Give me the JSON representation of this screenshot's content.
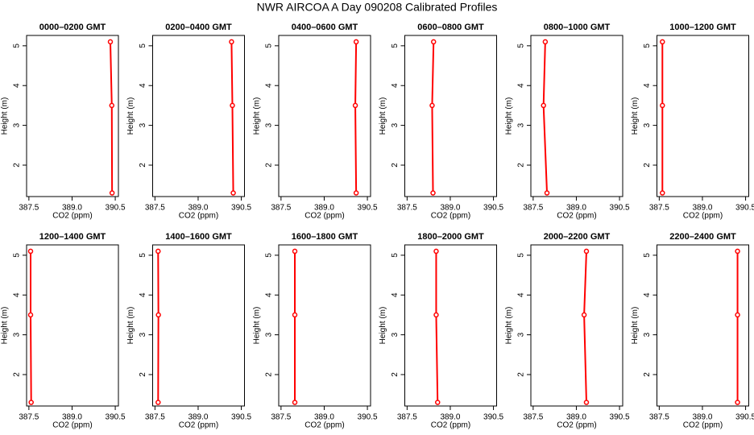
{
  "title": "NWR AIRCOA A  Day 090208  Calibrated Profiles",
  "chart_data": [
    {
      "type": "line",
      "title": "0000–0200 GMT",
      "xlabel": "CO2 (ppm)",
      "ylabel": "Height (m)",
      "color": "#ff0000",
      "x": [
        390.39,
        390.38,
        390.33
      ],
      "y": [
        1.3,
        3.5,
        5.1
      ],
      "xlim": [
        387.42,
        390.61
      ],
      "ylim": [
        1.21,
        5.26
      ],
      "xticks": [
        387.5,
        {
          "value": 389,
          "label": "389.0"
        },
        390.5
      ],
      "yticks": [
        2,
        3,
        4,
        5
      ]
    },
    {
      "type": "line",
      "title": "0200–0400 GMT",
      "xlabel": "CO2 (ppm)",
      "ylabel": "Height (m)",
      "color": "#ff0000",
      "x": [
        390.22,
        390.19,
        390.16
      ],
      "y": [
        1.3,
        3.5,
        5.1
      ],
      "xlim": [
        387.42,
        390.61
      ],
      "ylim": [
        1.21,
        5.26
      ],
      "xticks": [
        387.5,
        {
          "value": 389,
          "label": "389.0"
        },
        390.5
      ],
      "yticks": [
        2,
        3,
        4,
        5
      ]
    },
    {
      "type": "line",
      "title": "0400–0600 GMT",
      "xlabel": "CO2 (ppm)",
      "ylabel": "Height (m)",
      "color": "#ff0000",
      "x": [
        390.11,
        390.08,
        390.11
      ],
      "y": [
        1.3,
        3.5,
        5.1
      ],
      "xlim": [
        387.42,
        390.61
      ],
      "ylim": [
        1.21,
        5.26
      ],
      "xticks": [
        387.5,
        {
          "value": 389,
          "label": "389.0"
        },
        390.5
      ],
      "yticks": [
        2,
        3,
        4,
        5
      ]
    },
    {
      "type": "line",
      "title": "0600–0800 GMT",
      "xlabel": "CO2 (ppm)",
      "ylabel": "Height (m)",
      "color": "#ff0000",
      "x": [
        388.4,
        388.37,
        388.42
      ],
      "y": [
        1.3,
        3.5,
        5.1
      ],
      "xlim": [
        387.42,
        390.61
      ],
      "ylim": [
        1.21,
        5.26
      ],
      "xticks": [
        387.5,
        {
          "value": 389,
          "label": "389.0"
        },
        390.5
      ],
      "yticks": [
        2,
        3,
        4,
        5
      ]
    },
    {
      "type": "line",
      "title": "0800–1000 GMT",
      "xlabel": "CO2 (ppm)",
      "ylabel": "Height (m)",
      "color": "#ff0000",
      "x": [
        387.98,
        387.86,
        387.92
      ],
      "y": [
        1.3,
        3.5,
        5.1
      ],
      "xlim": [
        387.42,
        390.61
      ],
      "ylim": [
        1.21,
        5.26
      ],
      "xticks": [
        387.5,
        {
          "value": 389,
          "label": "389.0"
        },
        390.5
      ],
      "yticks": [
        2,
        3,
        4,
        5
      ]
    },
    {
      "type": "line",
      "title": "1000–1200 GMT",
      "xlabel": "CO2 (ppm)",
      "ylabel": "Height (m)",
      "color": "#ff0000",
      "x": [
        387.61,
        387.61,
        387.61
      ],
      "y": [
        1.3,
        3.5,
        5.1
      ],
      "xlim": [
        387.42,
        390.61
      ],
      "ylim": [
        1.21,
        5.26
      ],
      "xticks": [
        387.5,
        {
          "value": 389,
          "label": "389.0"
        },
        390.5
      ],
      "yticks": [
        2,
        3,
        4,
        5
      ]
    },
    {
      "type": "line",
      "title": "1200–1400 GMT",
      "xlabel": "CO2 (ppm)",
      "ylabel": "Height (m)",
      "color": "#ff0000",
      "x": [
        387.58,
        387.56,
        387.56
      ],
      "y": [
        1.3,
        3.5,
        5.1
      ],
      "xlim": [
        387.42,
        390.61
      ],
      "ylim": [
        1.21,
        5.26
      ],
      "xticks": [
        387.5,
        {
          "value": 389,
          "label": "389.0"
        },
        390.5
      ],
      "yticks": [
        2,
        3,
        4,
        5
      ]
    },
    {
      "type": "line",
      "title": "1400–1600 GMT",
      "xlabel": "CO2 (ppm)",
      "ylabel": "Height (m)",
      "color": "#ff0000",
      "x": [
        387.61,
        387.62,
        387.61
      ],
      "y": [
        1.3,
        3.5,
        5.1
      ],
      "xlim": [
        387.42,
        390.61
      ],
      "ylim": [
        1.21,
        5.26
      ],
      "xticks": [
        387.5,
        {
          "value": 389,
          "label": "389.0"
        },
        390.5
      ],
      "yticks": [
        2,
        3,
        4,
        5
      ]
    },
    {
      "type": "line",
      "title": "1600–1800 GMT",
      "xlabel": "CO2 (ppm)",
      "ylabel": "Height (m)",
      "color": "#ff0000",
      "x": [
        387.98,
        387.98,
        387.98
      ],
      "y": [
        1.3,
        3.5,
        5.1
      ],
      "xlim": [
        387.42,
        390.61
      ],
      "ylim": [
        1.21,
        5.26
      ],
      "xticks": [
        387.5,
        {
          "value": 389,
          "label": "389.0"
        },
        390.5
      ],
      "yticks": [
        2,
        3,
        4,
        5
      ]
    },
    {
      "type": "line",
      "title": "1800–2000 GMT",
      "xlabel": "CO2 (ppm)",
      "ylabel": "Height (m)",
      "color": "#ff0000",
      "x": [
        388.56,
        388.51,
        388.51
      ],
      "y": [
        1.3,
        3.5,
        5.1
      ],
      "xlim": [
        387.42,
        390.61
      ],
      "ylim": [
        1.21,
        5.26
      ],
      "xticks": [
        387.5,
        {
          "value": 389,
          "label": "389.0"
        },
        390.5
      ],
      "yticks": [
        2,
        3,
        4,
        5
      ]
    },
    {
      "type": "line",
      "title": "2000–2200 GMT",
      "xlabel": "CO2 (ppm)",
      "ylabel": "Height (m)",
      "color": "#ff0000",
      "x": [
        389.35,
        389.27,
        389.35
      ],
      "y": [
        1.3,
        3.5,
        5.1
      ],
      "xlim": [
        387.42,
        390.61
      ],
      "ylim": [
        1.21,
        5.26
      ],
      "xticks": [
        387.5,
        {
          "value": 389,
          "label": "389.0"
        },
        390.5
      ],
      "yticks": [
        2,
        3,
        4,
        5
      ]
    },
    {
      "type": "line",
      "title": "2200–2400 GMT",
      "xlabel": "CO2 (ppm)",
      "ylabel": "Height (m)",
      "color": "#ff0000",
      "x": [
        390.22,
        390.22,
        390.22
      ],
      "y": [
        1.3,
        3.5,
        5.1
      ],
      "xlim": [
        387.42,
        390.61
      ],
      "ylim": [
        1.21,
        5.26
      ],
      "xticks": [
        387.5,
        {
          "value": 389,
          "label": "389.0"
        },
        390.5
      ],
      "yticks": [
        2,
        3,
        4,
        5
      ]
    }
  ]
}
